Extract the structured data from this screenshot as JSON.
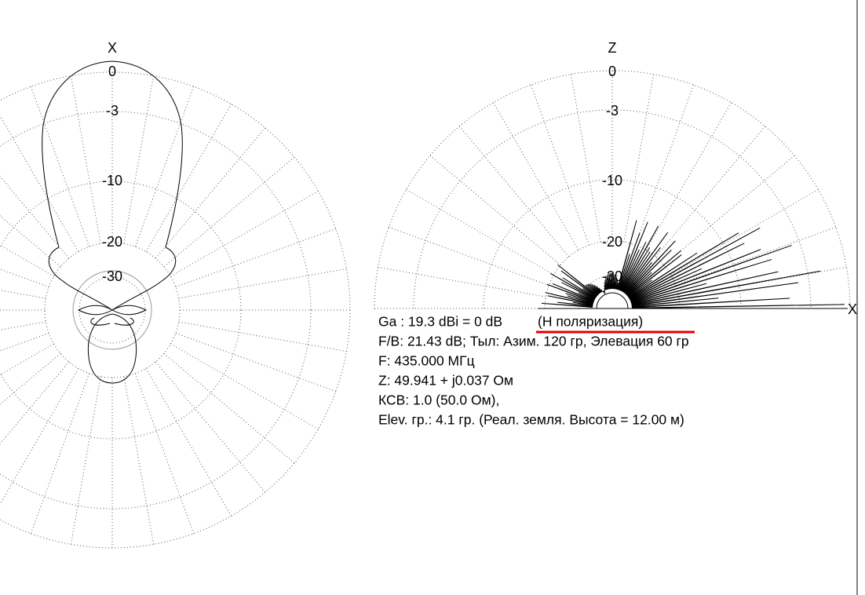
{
  "plots": [
    {
      "axis_label": "X",
      "ring_labels": [
        "0",
        "-3",
        "-10",
        "-20",
        "-30"
      ]
    },
    {
      "axis_label": "Z",
      "side_label": "X",
      "ring_labels": [
        "0",
        "-3",
        "-10",
        "-20",
        "-30"
      ]
    }
  ],
  "info": {
    "gain": "Ga : 19.3 dBi = 0 dB",
    "polarization": "(H поляризация)",
    "lines": [
      "F/B: 21.43 dB; Тыл: Азим. 120 гр, Элевация 60 гр",
      "F: 435.000 МГц",
      "Z: 49.941 + j0.037 Ом",
      "КСВ: 1.0 (50.0 Ом),",
      "Elev. гр.: 4.1 гр. (Реал. земля. Высота = 12.00 м)"
    ]
  }
}
